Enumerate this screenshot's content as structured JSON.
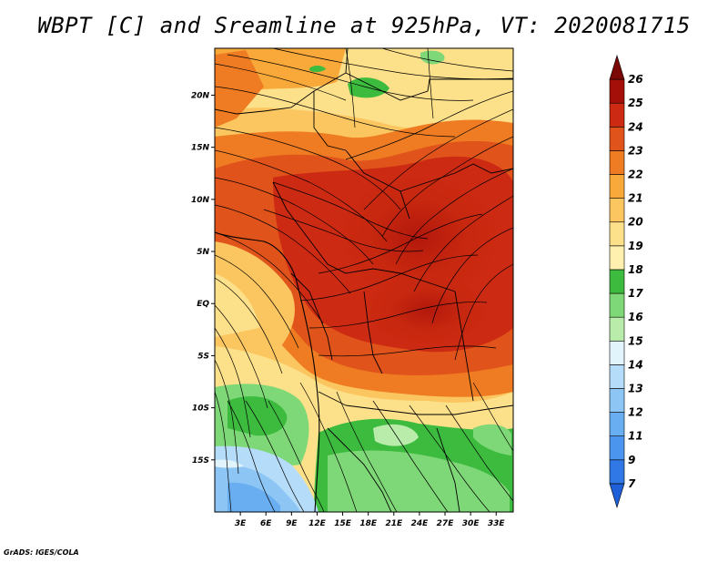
{
  "title": "WBPT [C] and Sreamline at 925hPa, VT: 2020081715",
  "footer": "GrADS: IGES/COLA",
  "map": {
    "lat_labels": [
      "20N",
      "15N",
      "10N",
      "5N",
      "EQ",
      "5S",
      "10S",
      "15S"
    ],
    "lat_values": [
      20,
      15,
      10,
      5,
      0,
      -5,
      -10,
      -15
    ],
    "lon_labels": [
      "3E",
      "6E",
      "9E",
      "12E",
      "15E",
      "18E",
      "21E",
      "24E",
      "27E",
      "30E",
      "33E"
    ],
    "lon_values": [
      3,
      6,
      9,
      12,
      15,
      18,
      21,
      24,
      27,
      30,
      33
    ],
    "lon_range": [
      0,
      35
    ],
    "lat_range": [
      -20,
      24.5
    ],
    "field": "wet-bulb potential temperature with streamlines"
  },
  "colorbar": {
    "labels": [
      "7",
      "9",
      "11",
      "12",
      "13",
      "14",
      "15",
      "16",
      "17",
      "18",
      "19",
      "20",
      "21",
      "22",
      "23",
      "24",
      "25",
      "26"
    ],
    "colors": [
      "#1f5fd8",
      "#2f78e6",
      "#4b95ee",
      "#6aaef2",
      "#8dc5f5",
      "#b5dcf8",
      "#e2f4fb",
      "#b9ecaa",
      "#7fd877",
      "#3dbb3f",
      "#fff0b0",
      "#fde08a",
      "#fbc660",
      "#f9a83a",
      "#ef7c22",
      "#e0531a",
      "#cc2a12",
      "#a50f0a",
      "#7a0806"
    ]
  }
}
